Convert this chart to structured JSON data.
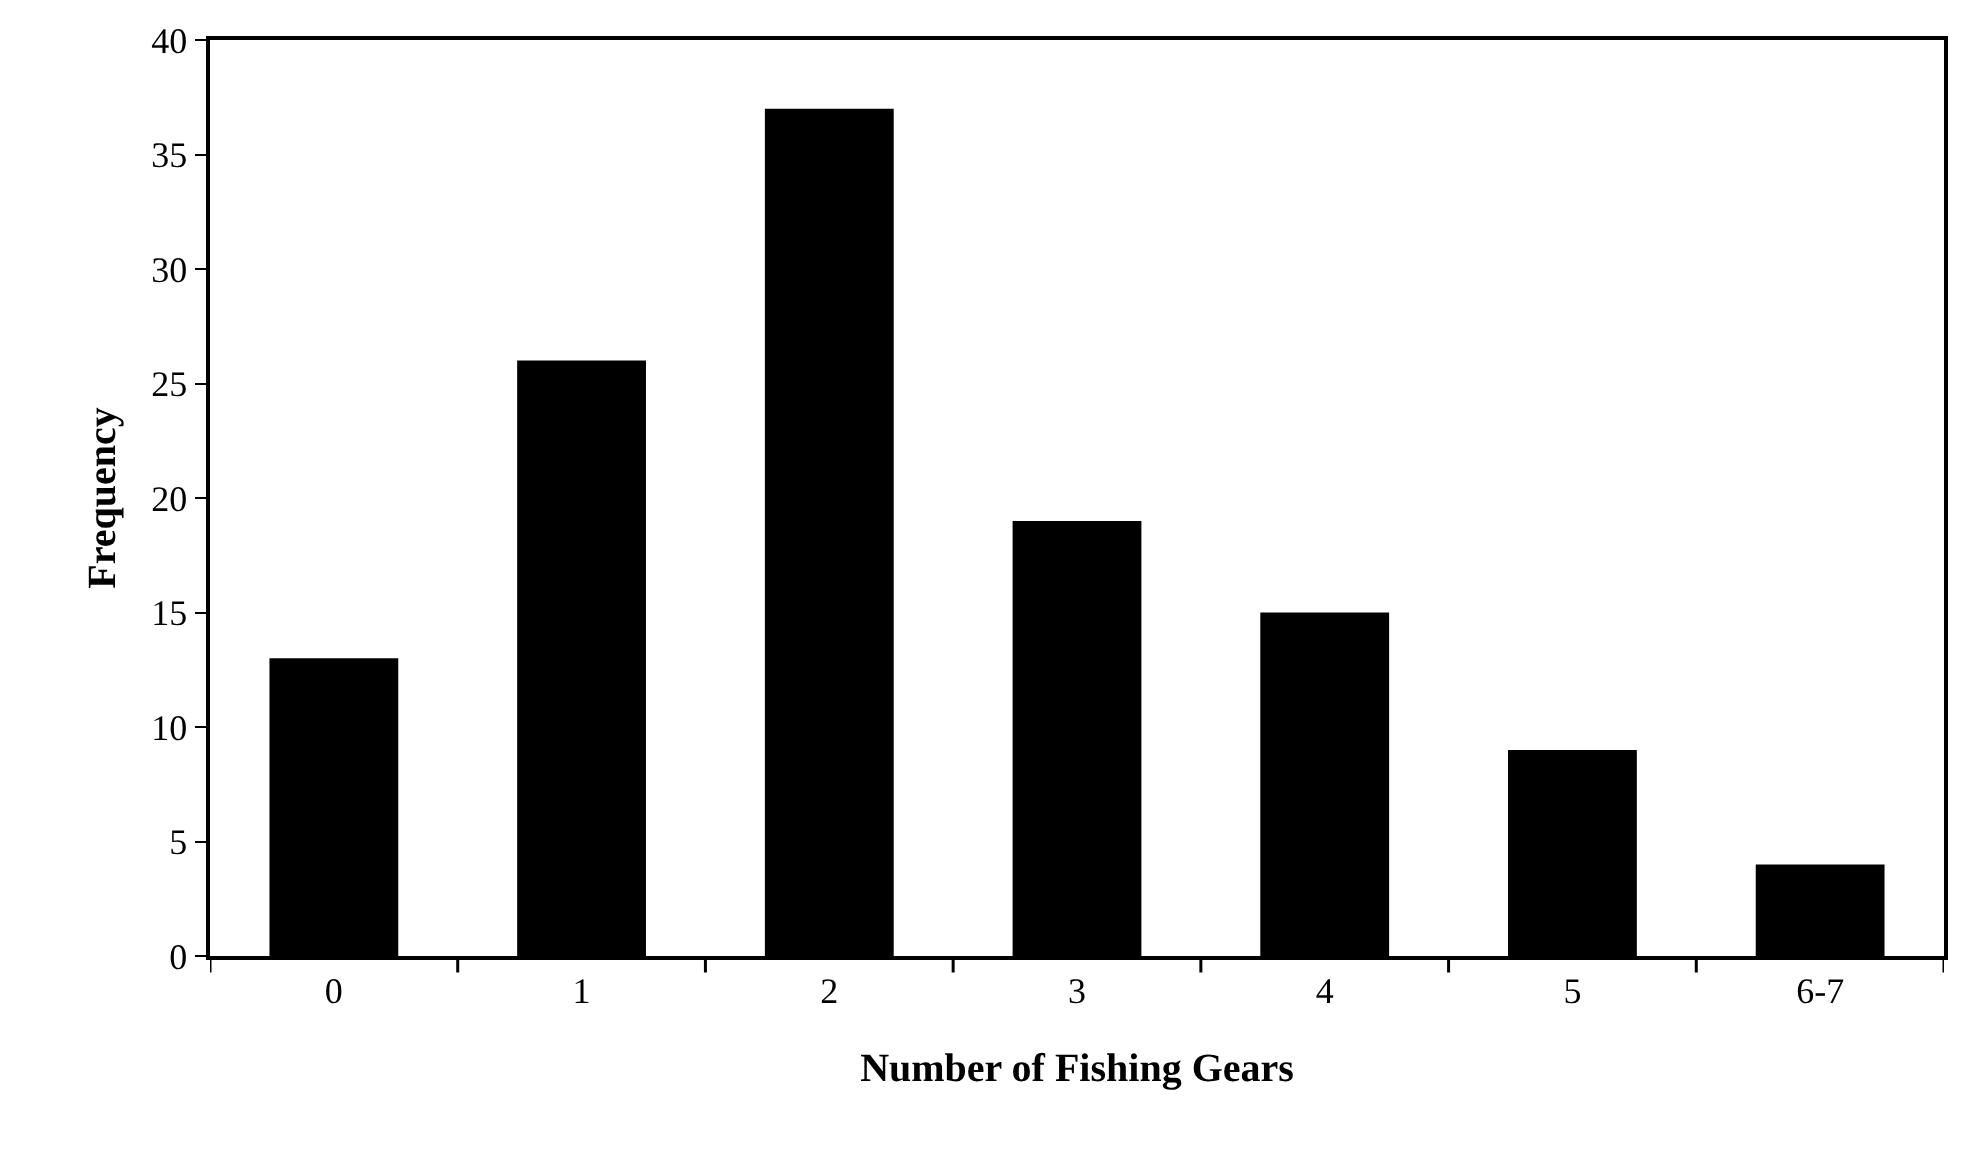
{
  "chart_data": {
    "type": "bar",
    "xlabel": "Number of Fishing Gears",
    "ylabel": "Frequency",
    "categories": [
      "0",
      "1",
      "2",
      "3",
      "4",
      "5",
      "6-7"
    ],
    "values": [
      13,
      26,
      37,
      19,
      15,
      9,
      4
    ],
    "color": "#000000",
    "ylim": [
      0,
      40
    ],
    "yticks": [
      0,
      5,
      10,
      15,
      20,
      25,
      30,
      35,
      40
    ]
  }
}
